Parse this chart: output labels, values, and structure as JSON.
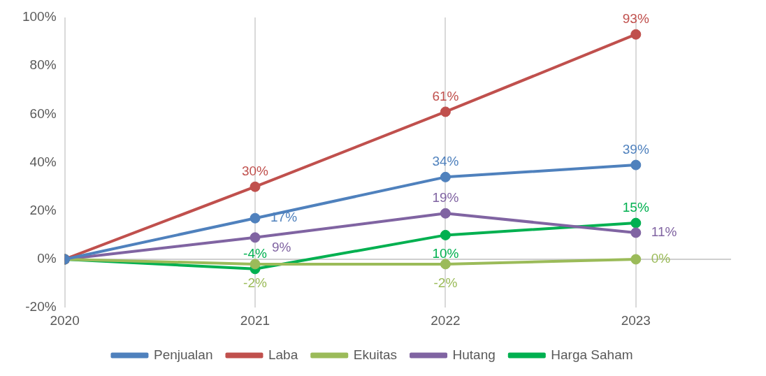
{
  "chart_data": {
    "type": "line",
    "x": [
      2020,
      2021,
      2022,
      2023
    ],
    "xlim": [
      2020,
      2023.5
    ],
    "xticks": [
      2020,
      2021,
      2022,
      2023
    ],
    "ylim": [
      -20,
      100
    ],
    "yticks": [
      {
        "value": -20,
        "label": "-20%"
      },
      {
        "value": 0,
        "label": "0%"
      },
      {
        "value": 20,
        "label": "20%"
      },
      {
        "value": 40,
        "label": "40%"
      },
      {
        "value": 60,
        "label": "60%"
      },
      {
        "value": 80,
        "label": "80%"
      },
      {
        "value": 100,
        "label": "100%"
      }
    ],
    "grid": "x",
    "legend": "bottom",
    "marker": "circle",
    "line_style": "solid",
    "ref_lines": [
      {
        "axis": "y",
        "value": 0,
        "color": "#bfbfbf"
      }
    ],
    "series": [
      {
        "name": "Penjualan",
        "color": "#4f81bd",
        "values": [
          0,
          17,
          34,
          39
        ],
        "value_labels": [
          null,
          "17%",
          "34%",
          "39%"
        ]
      },
      {
        "name": "Laba",
        "color": "#c0504d",
        "values": [
          0,
          30,
          61,
          93
        ],
        "value_labels": [
          null,
          "30%",
          "61%",
          "93%"
        ]
      },
      {
        "name": "Ekuitas",
        "color": "#9bbb59",
        "values": [
          0,
          -2,
          -2,
          0
        ],
        "value_labels": [
          null,
          "-2%",
          "-2%",
          "0%"
        ]
      },
      {
        "name": "Hutang",
        "color": "#8064a2",
        "values": [
          0,
          9,
          19,
          11
        ],
        "value_labels": [
          null,
          "9%",
          "19%",
          "11%"
        ]
      },
      {
        "name": "Harga Saham",
        "color": "#00b050",
        "values": [
          0,
          -4,
          10,
          15
        ],
        "value_labels": [
          null,
          "-4%",
          "10%",
          "15%"
        ]
      }
    ]
  }
}
